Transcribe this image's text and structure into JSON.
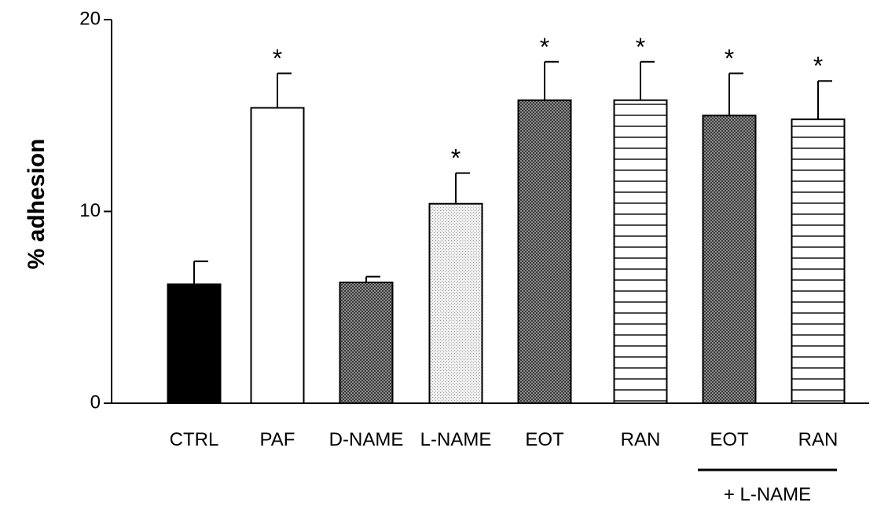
{
  "chart_data": {
    "type": "bar",
    "ylabel": "% adhesion",
    "ylim": [
      0,
      20
    ],
    "yticks": [
      0,
      10,
      20
    ],
    "ytick_labels": [
      "0",
      "10",
      "20"
    ],
    "categories": [
      "CTRL",
      "PAF",
      "D-NAME",
      "L-NAME",
      "EOT",
      "RAN",
      "EOT",
      "RAN"
    ],
    "values": [
      6.2,
      15.4,
      6.3,
      10.4,
      15.8,
      15.8,
      15.0,
      14.8
    ],
    "errors": [
      1.2,
      1.8,
      0.3,
      1.6,
      2.0,
      2.0,
      2.2,
      2.0
    ],
    "significance": [
      "",
      "*",
      "",
      "*",
      "*",
      "*",
      "*",
      "*"
    ],
    "fills": [
      "solid-black",
      "white",
      "dense-dots",
      "light-dots",
      "dense-dots",
      "horizontal-lines",
      "dense-dots",
      "horizontal-lines"
    ],
    "group_annotation": {
      "label": "+ L-NAME",
      "spans_categories": [
        6,
        7
      ]
    },
    "grid": false,
    "legend": "none"
  }
}
